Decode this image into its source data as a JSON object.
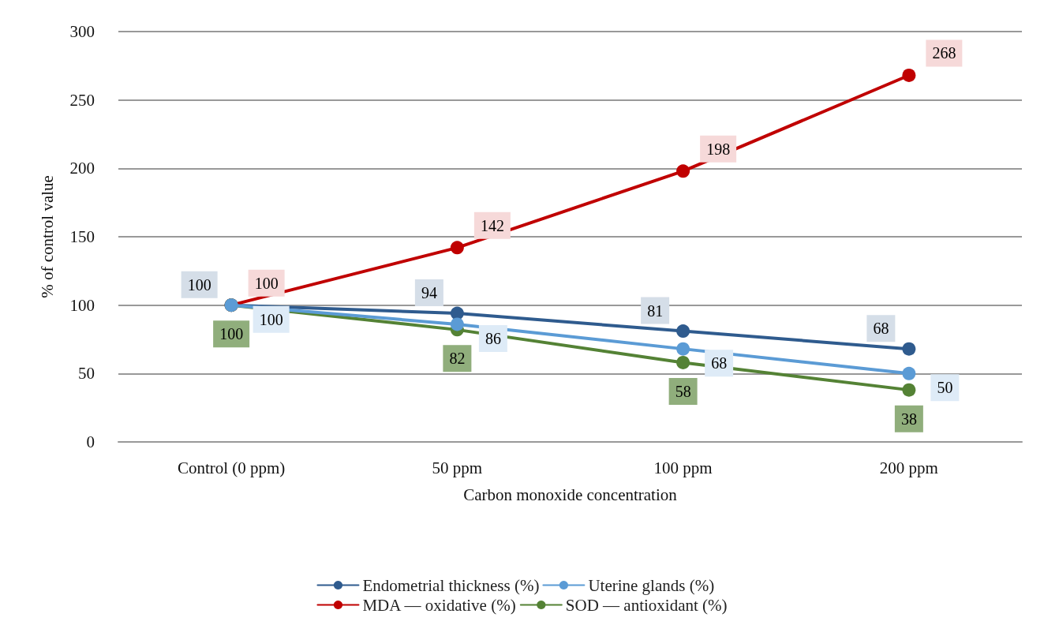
{
  "chart_data": {
    "type": "line",
    "xlabel": "Carbon monoxide concentration",
    "ylabel": "% of control value",
    "categories": [
      "Control (0 ppm)",
      "50 ppm",
      "100 ppm",
      "200 ppm"
    ],
    "series": [
      {
        "name": "Endometrial thickness (%)",
        "color": "#2f5b8e",
        "values": [
          100,
          94,
          81,
          68
        ]
      },
      {
        "name": "Uterine glands (%)",
        "color": "#5b9bd5",
        "values": [
          100,
          86,
          68,
          50
        ]
      },
      {
        "name": "MDA — oxidative (%)",
        "color": "#c00000",
        "values": [
          100,
          142,
          198,
          268
        ]
      },
      {
        "name": "SOD — antioxidant (%)",
        "color": "#548235",
        "values": [
          100,
          82,
          58,
          38
        ]
      }
    ],
    "ylim": [
      0,
      300
    ],
    "yticks": [
      0,
      50,
      100,
      150,
      200,
      250,
      300
    ],
    "grid": "y",
    "legend": "bottom",
    "marker": "circle",
    "line_style": "solid",
    "data_labels": true
  }
}
